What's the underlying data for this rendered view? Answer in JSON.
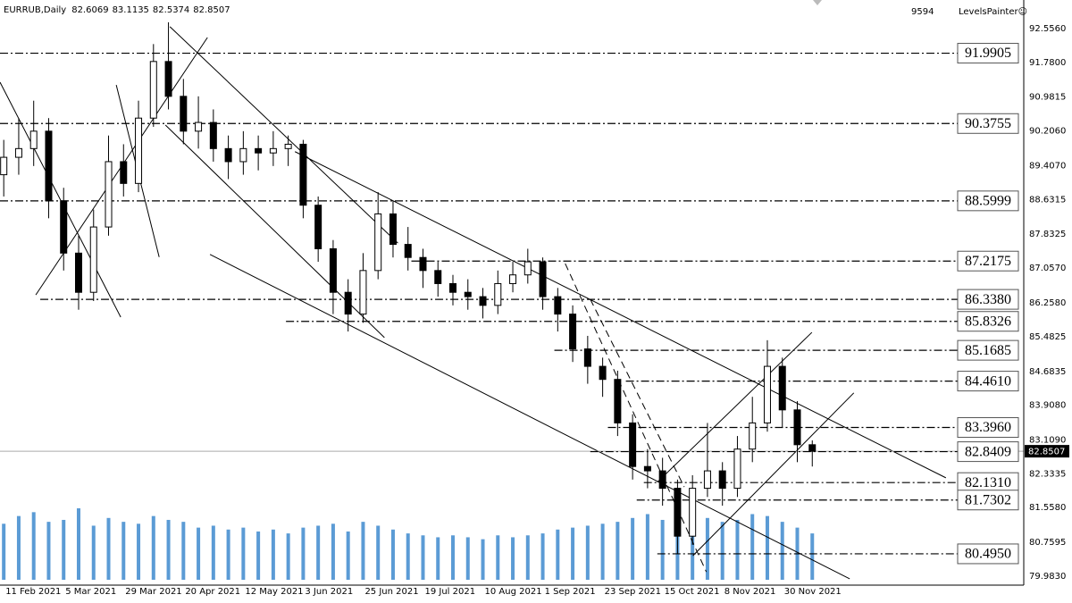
{
  "chart_data": {
    "type": "candlestick",
    "title": "EURRUB,Daily",
    "header_values": [
      82.6069,
      83.1135,
      82.5374,
      82.8507
    ],
    "top_right_texts": [
      "9594",
      "LevelsPainter☺"
    ],
    "grid": true,
    "up_color": "#ffffff",
    "down_color": "#000000",
    "volume_color": "#5b9bd5",
    "xlim": [
      -1,
      272.5
    ],
    "ylim": [
      79.776,
      93.212
    ],
    "xticks": [
      {
        "value": 0,
        "label": "11 Feb 2021"
      },
      {
        "value": 16,
        "label": "5 Mar 2021"
      },
      {
        "value": 32,
        "label": "29 Mar 2021"
      },
      {
        "value": 48,
        "label": "20 Apr 2021"
      },
      {
        "value": 64,
        "label": "12 May 2021"
      },
      {
        "value": 80,
        "label": "3 Jun 2021"
      },
      {
        "value": 96,
        "label": "25 Jun 2021"
      },
      {
        "value": 112,
        "label": "19 Jul 2021"
      },
      {
        "value": 128,
        "label": "10 Aug 2021"
      },
      {
        "value": 144,
        "label": "1 Sep 2021"
      },
      {
        "value": 160,
        "label": "23 Sep 2021"
      },
      {
        "value": 176,
        "label": "15 Oct 2021"
      },
      {
        "value": 192,
        "label": "8 Nov 2021"
      },
      {
        "value": 208,
        "label": "30 Nov 2021"
      }
    ],
    "yticks": [
      {
        "value": 92.556,
        "label": "92.5560"
      },
      {
        "value": 91.78,
        "label": "91.7800"
      },
      90.9815,
      {
        "value": 90.206,
        "label": "90.2060"
      },
      {
        "value": 89.407,
        "label": "89.4070"
      },
      88.6315,
      {
        "value": 87.8325,
        "label": "87.8325"
      },
      {
        "value": 87.057,
        "label": "87.0570"
      },
      {
        "value": 86.258,
        "label": "86.2580"
      },
      85.4825,
      84.6835,
      {
        "value": 83.908,
        "label": "83.9080"
      },
      {
        "value": 83.109,
        "label": "83.1090"
      },
      82.3335,
      {
        "value": 81.558,
        "label": "81.5580"
      },
      80.7595,
      {
        "value": 79.983,
        "label": "79.9830"
      }
    ],
    "levels": [
      {
        "value": 91.9905,
        "from": -1
      },
      {
        "value": 90.3755,
        "from": -1
      },
      {
        "value": 88.5999,
        "from": -1
      },
      {
        "value": 87.2175,
        "from": 108.9
      },
      {
        "value": 86.338,
        "label": "86.3380",
        "from": 9.75
      },
      {
        "value": 85.8326,
        "from": 75.4
      },
      {
        "value": 85.1685,
        "from": 147.1
      },
      {
        "value": 84.461,
        "label": "84.4610",
        "from": 166.2
      },
      {
        "value": 83.396,
        "label": "83.3960",
        "from": 161.4
      },
      {
        "value": 82.8409,
        "from": 156.7
      },
      {
        "value": 82.131,
        "label": "82.1310",
        "from": 171.0
      },
      {
        "value": 81.7302,
        "from": 169.1
      },
      {
        "value": 80.495,
        "label": "80.4950",
        "from": 174.6
      }
    ],
    "last_price": 82.8507,
    "trendlines": [
      {
        "x1": -1,
        "y1": 91.325,
        "x2": 31.25,
        "y2": 85.93,
        "dashed": false
      },
      {
        "x1": 8.56,
        "y1": 86.44,
        "x2": 54.42,
        "y2": 92.35,
        "dashed": false
      },
      {
        "x1": 30.06,
        "y1": 91.26,
        "x2": 41.52,
        "y2": 87.31,
        "dashed": false
      },
      {
        "x1": 44.39,
        "y1": 92.6,
        "x2": 105.3,
        "y2": 87.63,
        "dashed": false
      },
      {
        "x1": 43.2,
        "y1": 90.34,
        "x2": 101.7,
        "y2": 85.46,
        "dashed": false
      },
      {
        "x1": 55.1,
        "y1": 87.37,
        "x2": 226.0,
        "y2": 79.92,
        "dashed": false
      },
      {
        "x1": 77.8,
        "y1": 89.73,
        "x2": 251.7,
        "y2": 82.24,
        "dashed": false
      },
      {
        "x1": 174.6,
        "y1": 82.14,
        "x2": 215.9,
        "y2": 85.58,
        "dashed": false
      },
      {
        "x1": 184.1,
        "y1": 80.45,
        "x2": 227.1,
        "y2": 84.19,
        "dashed": false
      },
      {
        "x1": 150.0,
        "y1": 87.16,
        "x2": 187.7,
        "y2": 80.08,
        "dashed": true
      },
      {
        "x1": 156.7,
        "y1": 86.34,
        "x2": 181.8,
        "y2": 82.03,
        "dashed": true
      }
    ],
    "candles": {
      "x": [
        0,
        4,
        8,
        12,
        16,
        20,
        24,
        28,
        32,
        36,
        40,
        44,
        48,
        52,
        56,
        60,
        64,
        68,
        72,
        76,
        80,
        84,
        88,
        92,
        96,
        100,
        104,
        108,
        112,
        116,
        120,
        124,
        128,
        132,
        136,
        140,
        144,
        148,
        152,
        156,
        160,
        164,
        168,
        172,
        176,
        180,
        184,
        188,
        192,
        196,
        200,
        204,
        208,
        212,
        216
      ],
      "open": [
        89.2,
        89.6,
        89.8,
        90.2,
        88.6,
        87.4,
        86.5,
        88.0,
        89.5,
        89.0,
        90.5,
        91.8,
        91.0,
        90.2,
        90.4,
        89.8,
        89.5,
        89.8,
        89.7,
        89.8,
        89.9,
        88.5,
        87.5,
        86.5,
        86.0,
        87.0,
        88.3,
        87.6,
        87.3,
        87.0,
        86.7,
        86.5,
        86.4,
        86.2,
        86.7,
        86.9,
        87.2,
        86.4,
        86.0,
        85.2,
        84.8,
        84.5,
        83.5,
        82.5,
        82.4,
        82.0,
        80.9,
        82.0,
        82.4,
        82.0,
        82.9,
        83.5,
        84.8,
        83.8,
        83.0
      ],
      "high": [
        90.0,
        90.5,
        90.9,
        90.5,
        88.9,
        87.8,
        88.4,
        90.1,
        89.9,
        90.9,
        92.2,
        92.7,
        91.4,
        91.0,
        90.7,
        90.1,
        90.2,
        90.1,
        90.2,
        90.1,
        90.0,
        88.7,
        87.7,
        86.8,
        87.4,
        88.8,
        88.6,
        88.0,
        87.5,
        87.2,
        86.9,
        86.8,
        86.6,
        87.0,
        87.2,
        87.5,
        87.3,
        86.6,
        86.2,
        85.5,
        85.0,
        84.7,
        83.7,
        82.9,
        82.7,
        82.2,
        82.3,
        83.5,
        82.6,
        83.2,
        84.1,
        85.4,
        85.0,
        84.0,
        83.1
      ],
      "low": [
        88.7,
        89.2,
        89.4,
        88.2,
        87.0,
        86.1,
        86.3,
        87.8,
        88.7,
        88.8,
        90.3,
        90.7,
        89.9,
        89.8,
        89.5,
        89.1,
        89.2,
        89.3,
        89.4,
        89.4,
        88.2,
        87.2,
        86.0,
        85.6,
        85.8,
        86.8,
        87.3,
        87.0,
        86.6,
        86.4,
        86.2,
        86.1,
        85.9,
        86.0,
        86.5,
        86.7,
        86.1,
        85.6,
        84.9,
        84.4,
        84.1,
        83.2,
        82.2,
        82.0,
        81.6,
        80.5,
        80.7,
        81.8,
        81.6,
        81.8,
        82.6,
        83.3,
        83.4,
        82.6,
        82.5
      ],
      "close": [
        89.6,
        89.8,
        90.2,
        88.6,
        87.4,
        86.5,
        88.0,
        89.5,
        89.0,
        90.5,
        91.8,
        91.0,
        90.2,
        90.4,
        89.8,
        89.5,
        89.8,
        89.7,
        89.8,
        89.9,
        88.5,
        87.5,
        86.5,
        86.0,
        87.0,
        88.3,
        87.6,
        87.3,
        87.0,
        86.7,
        86.5,
        86.4,
        86.2,
        86.7,
        86.9,
        87.2,
        86.4,
        86.0,
        85.2,
        84.8,
        84.5,
        83.5,
        82.5,
        82.4,
        82.0,
        80.9,
        82.0,
        82.4,
        82.0,
        82.9,
        83.5,
        84.8,
        83.8,
        83.0,
        82.85
      ],
      "volume": [
        2900,
        3300,
        3500,
        3000,
        3100,
        3700,
        2800,
        3200,
        3000,
        2900,
        3300,
        3100,
        3000,
        2700,
        2800,
        2600,
        2700,
        2500,
        2600,
        2400,
        2700,
        2800,
        2900,
        2500,
        3000,
        2800,
        2600,
        2400,
        2300,
        2200,
        2300,
        2200,
        2100,
        2300,
        2200,
        2300,
        2400,
        2600,
        2700,
        2800,
        2900,
        3000,
        3200,
        3400,
        3100,
        3600,
        3300,
        3200,
        3000,
        3100,
        3400,
        3300,
        3000,
        2700,
        2400
      ]
    }
  }
}
